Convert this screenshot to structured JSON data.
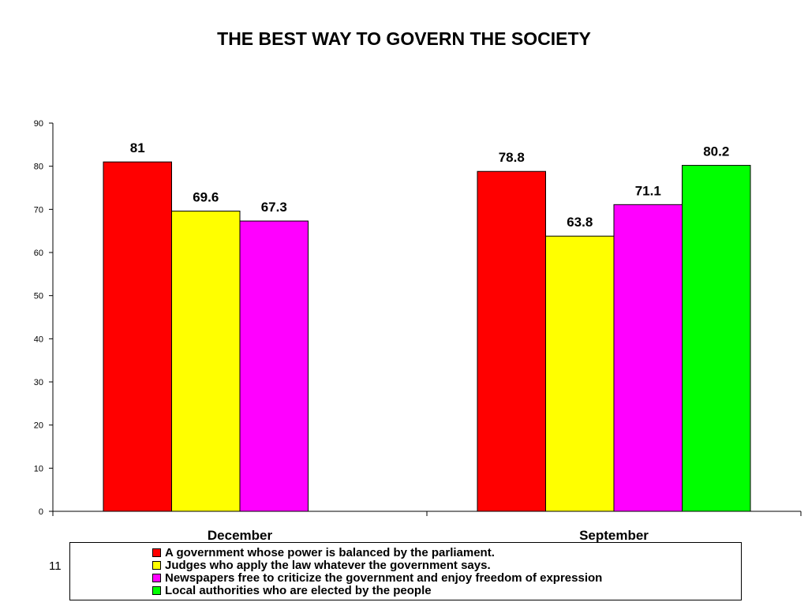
{
  "slide": {
    "page_number": "11"
  },
  "chart_data": {
    "type": "bar",
    "title": "THE BEST WAY TO GOVERN THE SOCIETY",
    "categories": [
      "December",
      "September"
    ],
    "ylim": [
      0,
      90
    ],
    "yticks": [
      0,
      10,
      20,
      30,
      40,
      50,
      60,
      70,
      80,
      90
    ],
    "grid": false,
    "legend_position": "bottom",
    "series": [
      {
        "name": "A government whose power is balanced by the parliament.",
        "color": "#ff0000",
        "values": [
          81,
          78.8
        ]
      },
      {
        "name": "Judges who apply the law whatever the government says.",
        "color": "#ffff00",
        "values": [
          69.6,
          63.8
        ]
      },
      {
        "name": "Newspapers free to criticize the government and enjoy freedom of expression",
        "color": "#ff00ff",
        "values": [
          67.3,
          71.1
        ]
      },
      {
        "name": "Local authorities who are elected by the people",
        "color": "#00ff00",
        "values": [
          null,
          80.2
        ]
      }
    ]
  }
}
